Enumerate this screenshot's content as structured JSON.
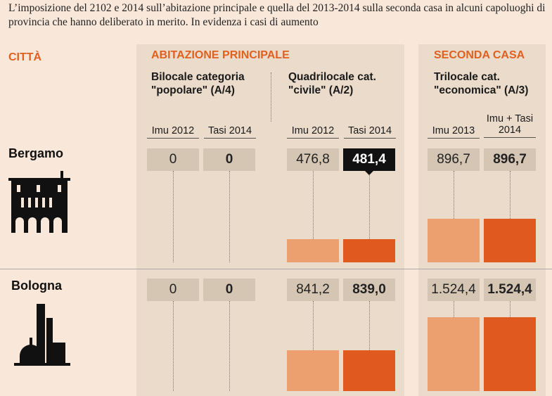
{
  "intro": "L’imposizione del 2102 e 2014 sull’abitazione principale e quella del 2013-2014 sulla seconda casa in alcuni capoluoghi di provincia che hanno deliberato in merito. In evidenza i casi di aumento",
  "city_header": "CITTÀ",
  "sections": {
    "main": "ABITAZIONE PRINCIPALE",
    "second": "SECONDA CASA"
  },
  "groups": [
    {
      "title": "Bilocale categoria \"popolare\" (A/4)",
      "cols": [
        "Imu 2012",
        "Tasi 2014"
      ]
    },
    {
      "title": "Quadrilocale cat. \"civile\" (A/2)",
      "cols": [
        "Imu 2012",
        "Tasi 2014"
      ]
    },
    {
      "title": "Trilocale cat. \"economica\" (A/3)",
      "cols": [
        "Imu 2013",
        "Imu + Tasi 2014"
      ]
    }
  ],
  "colors": {
    "old": "#eda06f",
    "new": "#e05a1f",
    "highlight": "#111111"
  },
  "cities": [
    {
      "name": "Bergamo",
      "icon": "bergamo-palazzo-icon",
      "values": [
        "0",
        "0",
        "476,8",
        "481,4",
        "896,7",
        "896,7"
      ],
      "numeric": [
        0,
        0,
        476.8,
        481.4,
        896.7,
        896.7
      ],
      "highlight": 3
    },
    {
      "name": "Bologna",
      "icon": "bologna-towers-icon",
      "values": [
        "0",
        "0",
        "841,2",
        "839,0",
        "1.524,4",
        "1.524,4"
      ],
      "numeric": [
        0,
        0,
        841.2,
        839.0,
        1524.4,
        1524.4
      ],
      "highlight": -1
    }
  ]
}
